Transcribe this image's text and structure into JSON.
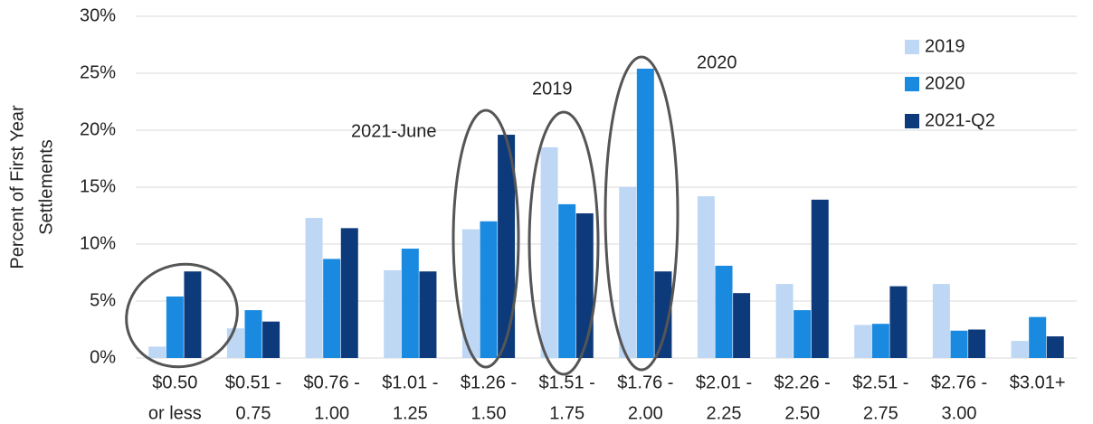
{
  "chart_data": {
    "type": "bar",
    "y_label": [
      "Percent of First Year",
      "Settlements"
    ],
    "categories": [
      [
        "$0.50",
        "or less"
      ],
      [
        "$0.51 -",
        "0.75"
      ],
      [
        "$0.76 -",
        "1.00"
      ],
      [
        "$1.01 -",
        "1.25"
      ],
      [
        "$1.26 -",
        "1.50"
      ],
      [
        "$1.51 -",
        "1.75"
      ],
      [
        "$1.76 -",
        "2.00"
      ],
      [
        "$2.01 -",
        "2.25"
      ],
      [
        "$2.26 -",
        "2.50"
      ],
      [
        "$2.51 -",
        "2.75"
      ],
      [
        "$2.76 -",
        "3.00"
      ],
      [
        "$3.01+",
        null
      ]
    ],
    "series": [
      {
        "name": "2019",
        "color": "#bdd7f5",
        "values": [
          1.0,
          2.6,
          12.3,
          7.7,
          11.3,
          18.5,
          15.0,
          14.2,
          6.5,
          2.9,
          6.5,
          1.5
        ]
      },
      {
        "name": "2020",
        "color": "#1a8ae0",
        "values": [
          5.4,
          4.2,
          8.7,
          9.6,
          12.0,
          13.5,
          25.4,
          8.1,
          4.2,
          3.0,
          2.4,
          3.6
        ]
      },
      {
        "name": "2021-Q2",
        "color": "#0d3a7a",
        "values": [
          7.6,
          3.2,
          11.4,
          7.6,
          19.6,
          12.7,
          7.6,
          5.7,
          13.9,
          6.3,
          2.5,
          1.9
        ]
      }
    ],
    "ylim": [
      0,
      30
    ],
    "yticks": [
      {
        "value": 0,
        "label": "0%"
      },
      {
        "value": 5,
        "label": "5%"
      },
      {
        "value": 10,
        "label": "10%"
      },
      {
        "value": 15,
        "label": "15%"
      },
      {
        "value": 20,
        "label": "20%"
      },
      {
        "value": 25,
        "label": "25%"
      },
      {
        "value": 30,
        "label": "30%"
      }
    ],
    "grid": true,
    "legend": "top-right",
    "annotations": [
      "2021-June",
      "2019",
      "2020"
    ]
  }
}
